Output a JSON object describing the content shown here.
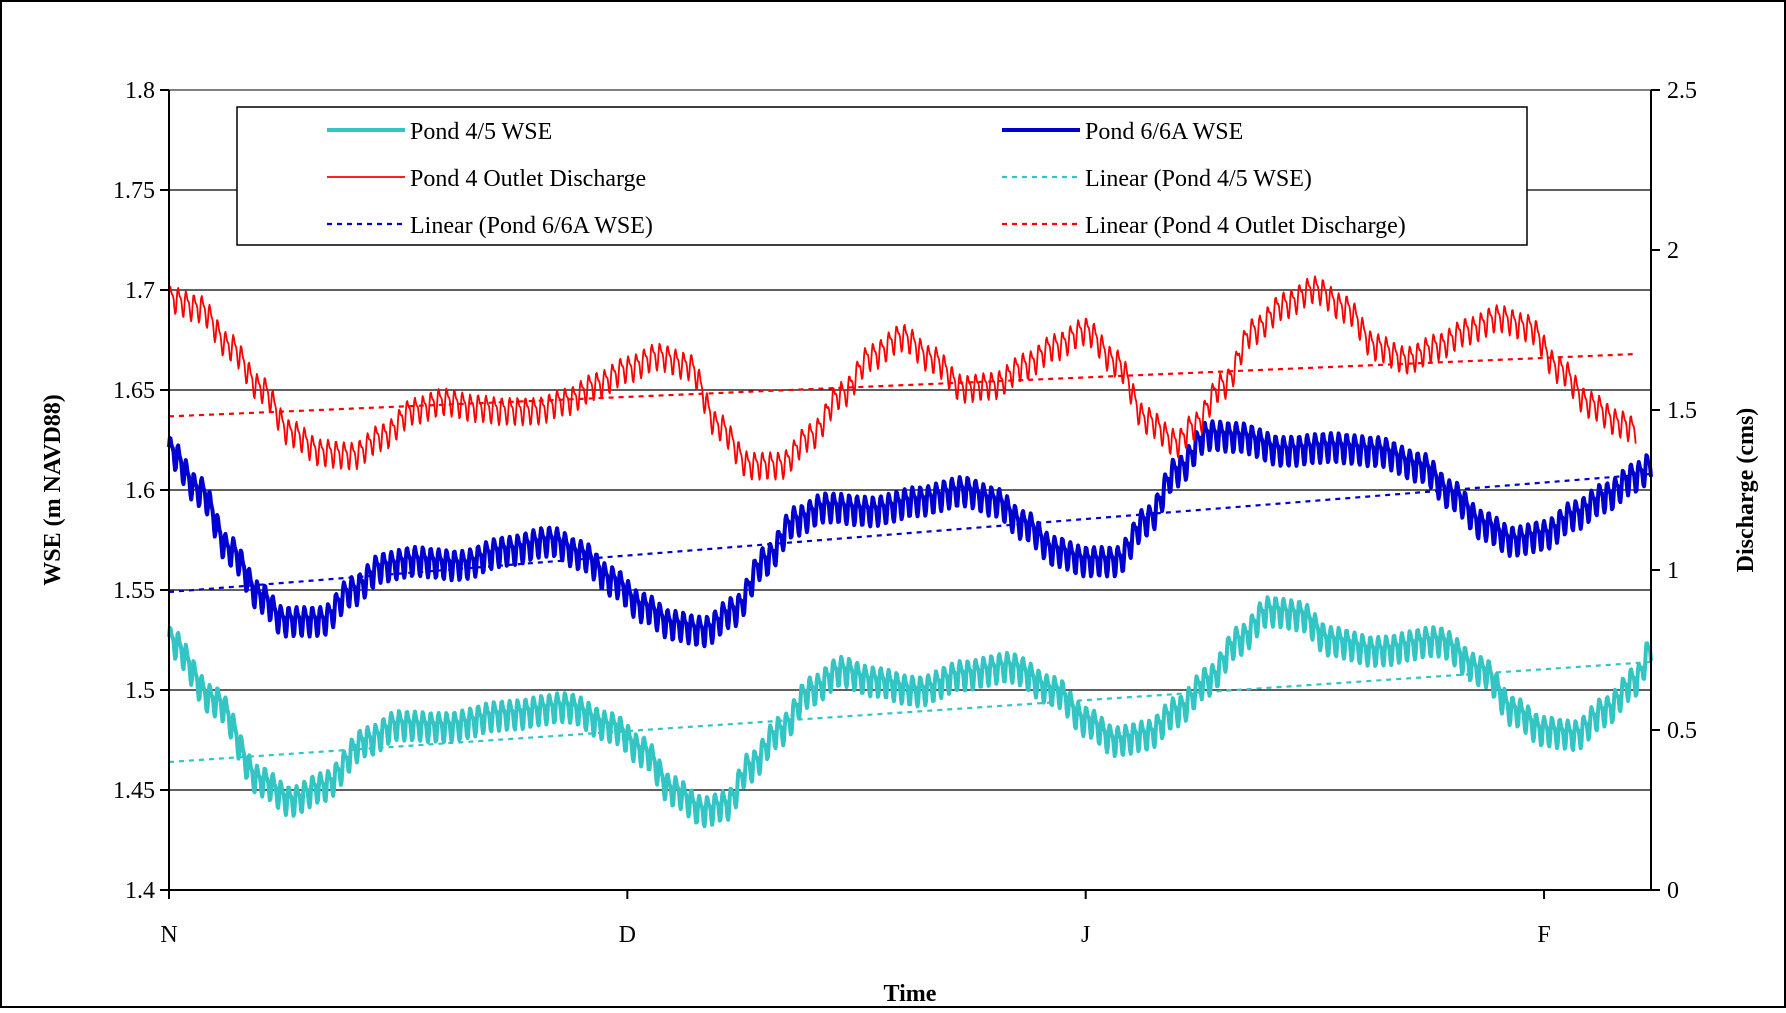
{
  "chart_data": {
    "type": "line",
    "title": "",
    "xlabel": "Time",
    "ylabel_left": "WSE (m NAVD88)",
    "ylabel_right": "Discharge (cms)",
    "x_tick_labels": [
      "N",
      "D",
      "J",
      "F"
    ],
    "x_range_days": [
      0,
      97
    ],
    "x_tick_days": [
      0,
      30,
      60,
      90
    ],
    "ylim_left": [
      1.4,
      1.8
    ],
    "ylim_right": [
      0,
      2.5
    ],
    "yticks_left": [
      "1.4",
      "1.45",
      "1.5",
      "1.55",
      "1.6",
      "1.65",
      "1.7",
      "1.75",
      "1.8"
    ],
    "yticks_right": [
      "0",
      "0.5",
      "1",
      "1.5",
      "2",
      "2.5"
    ],
    "grid": "horizontal",
    "legend_position": "top",
    "series": [
      {
        "name": "Pond 4/5 WSE",
        "axis": "left",
        "color": "#33C4C4",
        "style": "solid-thick",
        "oscillation_amplitude": 0.006,
        "points": [
          [
            0,
            1.525
          ],
          [
            3,
            1.495
          ],
          [
            6,
            1.455
          ],
          [
            8,
            1.445
          ],
          [
            10,
            1.452
          ],
          [
            13,
            1.475
          ],
          [
            15,
            1.483
          ],
          [
            18,
            1.482
          ],
          [
            22,
            1.488
          ],
          [
            26,
            1.492
          ],
          [
            29,
            1.482
          ],
          [
            31,
            1.47
          ],
          [
            33,
            1.45
          ],
          [
            35,
            1.44
          ],
          [
            36.5,
            1.443
          ],
          [
            38,
            1.462
          ],
          [
            40,
            1.48
          ],
          [
            42,
            1.5
          ],
          [
            44,
            1.51
          ],
          [
            46,
            1.505
          ],
          [
            49,
            1.5
          ],
          [
            52,
            1.508
          ],
          [
            55,
            1.512
          ],
          [
            58,
            1.5
          ],
          [
            60,
            1.485
          ],
          [
            62,
            1.475
          ],
          [
            64,
            1.478
          ],
          [
            66,
            1.49
          ],
          [
            68,
            1.505
          ],
          [
            70,
            1.525
          ],
          [
            72,
            1.54
          ],
          [
            74,
            1.538
          ],
          [
            76,
            1.525
          ],
          [
            79,
            1.52
          ],
          [
            83,
            1.525
          ],
          [
            86,
            1.51
          ],
          [
            88,
            1.49
          ],
          [
            90,
            1.48
          ],
          [
            92,
            1.478
          ],
          [
            94,
            1.49
          ],
          [
            96,
            1.505
          ],
          [
            97,
            1.52
          ]
        ]
      },
      {
        "name": "Pond 6/6A WSE",
        "axis": "left",
        "color": "#0000D0",
        "style": "solid-thick",
        "oscillation_amplitude": 0.006,
        "points": [
          [
            0,
            1.62
          ],
          [
            2,
            1.6
          ],
          [
            4,
            1.57
          ],
          [
            6,
            1.547
          ],
          [
            7.5,
            1.535
          ],
          [
            10,
            1.535
          ],
          [
            12,
            1.55
          ],
          [
            14,
            1.562
          ],
          [
            16,
            1.565
          ],
          [
            19,
            1.563
          ],
          [
            22,
            1.57
          ],
          [
            25,
            1.575
          ],
          [
            27,
            1.568
          ],
          [
            29,
            1.555
          ],
          [
            31,
            1.542
          ],
          [
            33,
            1.533
          ],
          [
            35,
            1.53
          ],
          [
            37,
            1.54
          ],
          [
            39,
            1.565
          ],
          [
            41,
            1.585
          ],
          [
            43,
            1.592
          ],
          [
            46,
            1.59
          ],
          [
            49,
            1.595
          ],
          [
            52,
            1.6
          ],
          [
            54,
            1.595
          ],
          [
            56,
            1.583
          ],
          [
            58,
            1.57
          ],
          [
            60,
            1.565
          ],
          [
            62,
            1.565
          ],
          [
            64,
            1.585
          ],
          [
            66,
            1.61
          ],
          [
            68,
            1.628
          ],
          [
            70,
            1.627
          ],
          [
            73,
            1.62
          ],
          [
            76,
            1.622
          ],
          [
            79,
            1.62
          ],
          [
            82,
            1.612
          ],
          [
            84,
            1.598
          ],
          [
            86,
            1.583
          ],
          [
            88,
            1.575
          ],
          [
            90,
            1.578
          ],
          [
            92,
            1.588
          ],
          [
            94,
            1.597
          ],
          [
            96,
            1.607
          ],
          [
            97,
            1.612
          ]
        ]
      },
      {
        "name": "Pond 4 Outlet Discharge",
        "axis": "right",
        "color": "#FF0000",
        "style": "solid-thin",
        "oscillation_amplitude": 0.035,
        "points": [
          [
            0,
            1.85
          ],
          [
            2,
            1.82
          ],
          [
            4,
            1.7
          ],
          [
            6,
            1.57
          ],
          [
            8,
            1.43
          ],
          [
            10,
            1.37
          ],
          [
            12,
            1.36
          ],
          [
            14,
            1.42
          ],
          [
            16,
            1.5
          ],
          [
            18,
            1.53
          ],
          [
            20,
            1.51
          ],
          [
            22,
            1.5
          ],
          [
            24,
            1.5
          ],
          [
            26,
            1.53
          ],
          [
            28,
            1.58
          ],
          [
            30,
            1.63
          ],
          [
            32,
            1.67
          ],
          [
            34,
            1.64
          ],
          [
            36,
            1.45
          ],
          [
            38,
            1.33
          ],
          [
            40,
            1.33
          ],
          [
            42,
            1.42
          ],
          [
            44,
            1.55
          ],
          [
            46,
            1.67
          ],
          [
            48,
            1.73
          ],
          [
            50,
            1.66
          ],
          [
            52,
            1.57
          ],
          [
            54,
            1.58
          ],
          [
            56,
            1.64
          ],
          [
            58,
            1.7
          ],
          [
            60,
            1.75
          ],
          [
            62,
            1.65
          ],
          [
            64,
            1.47
          ],
          [
            66,
            1.4
          ],
          [
            67,
            1.45
          ],
          [
            69,
            1.58
          ],
          [
            71,
            1.75
          ],
          [
            73,
            1.83
          ],
          [
            75,
            1.88
          ],
          [
            77,
            1.82
          ],
          [
            79,
            1.7
          ],
          [
            81,
            1.66
          ],
          [
            83,
            1.7
          ],
          [
            85,
            1.75
          ],
          [
            87,
            1.79
          ],
          [
            89,
            1.76
          ],
          [
            91,
            1.63
          ],
          [
            93,
            1.52
          ],
          [
            95,
            1.46
          ],
          [
            96,
            1.44
          ]
        ]
      },
      {
        "name": "Linear (Pond 4/5 WSE)",
        "axis": "left",
        "color": "#33C4C4",
        "style": "dotted",
        "points": [
          [
            0,
            1.464
          ],
          [
            97,
            1.514
          ]
        ]
      },
      {
        "name": "Linear (Pond 6/6A WSE)",
        "axis": "left",
        "color": "#0000D0",
        "style": "dotted",
        "points": [
          [
            0,
            1.549
          ],
          [
            97,
            1.608
          ]
        ]
      },
      {
        "name": "Linear (Pond 4 Outlet Discharge)",
        "axis": "right",
        "color": "#FF0000",
        "style": "dotted",
        "points": [
          [
            0,
            1.48
          ],
          [
            96,
            1.675
          ]
        ]
      }
    ]
  },
  "legend": {
    "items": [
      {
        "label": "Pond 4/5 WSE",
        "series": 0
      },
      {
        "label": "Pond 6/6A WSE",
        "series": 1
      },
      {
        "label": "Pond 4 Outlet Discharge",
        "series": 2
      },
      {
        "label": "Linear (Pond 4/5 WSE)",
        "series": 3
      },
      {
        "label": "Linear (Pond 6/6A WSE)",
        "series": 4
      },
      {
        "label": "Linear (Pond 4 Outlet Discharge)",
        "series": 5
      }
    ]
  }
}
